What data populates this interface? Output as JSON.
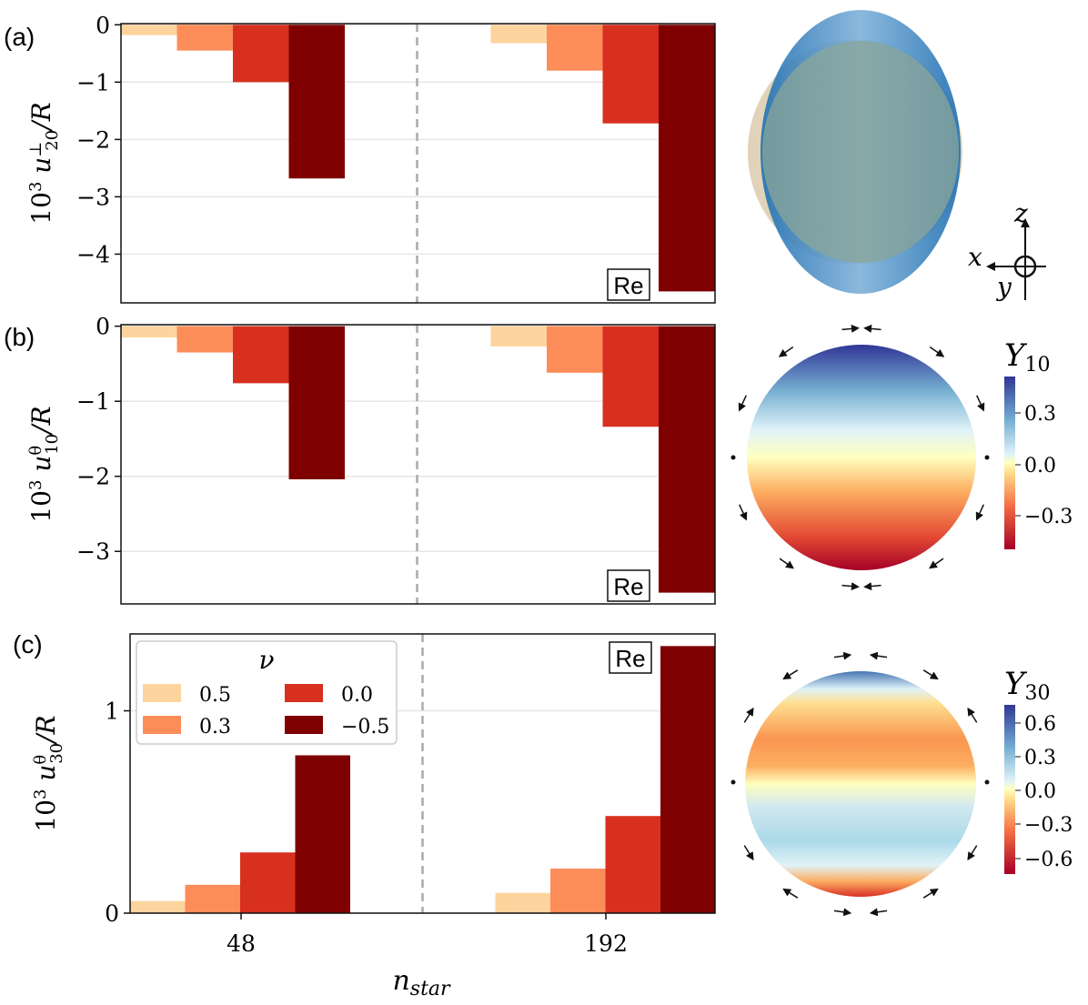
{
  "chart_data": [
    {
      "type": "bar",
      "panel_label": "(a)",
      "ylabel": "10³ u⊥20/R",
      "categories": [
        "48",
        "192"
      ],
      "series": [
        {
          "name": "0.5",
          "values": [
            -0.18,
            -0.32
          ]
        },
        {
          "name": "0.3",
          "values": [
            -0.45,
            -0.8
          ]
        },
        {
          "name": "0.0",
          "values": [
            -1.0,
            -1.72
          ]
        },
        {
          "name": "−0.5",
          "values": [
            -2.68,
            -4.65
          ]
        }
      ],
      "ylim": [
        -4.85,
        0.02
      ],
      "yticks": [
        0,
        -1,
        -2,
        -3,
        -4
      ],
      "ytick_labels": [
        "0",
        "−1",
        "−2",
        "−3",
        "−4"
      ],
      "tag": "Re",
      "tag_position": "bottom-right",
      "grid": "horizontal"
    },
    {
      "type": "bar",
      "panel_label": "(b)",
      "ylabel": "10³ uθ10/R",
      "categories": [
        "48",
        "192"
      ],
      "series": [
        {
          "name": "0.5",
          "values": [
            -0.15,
            -0.27
          ]
        },
        {
          "name": "0.3",
          "values": [
            -0.35,
            -0.62
          ]
        },
        {
          "name": "0.0",
          "values": [
            -0.76,
            -1.34
          ]
        },
        {
          "name": "−0.5",
          "values": [
            -2.04,
            -3.55
          ]
        }
      ],
      "ylim": [
        -3.7,
        0.02
      ],
      "yticks": [
        0,
        -1,
        -2,
        -3
      ],
      "ytick_labels": [
        "0",
        "−1",
        "−2",
        "−3"
      ],
      "tag": "Re",
      "tag_position": "bottom-right",
      "grid": "horizontal"
    },
    {
      "type": "bar",
      "panel_label": "(c)",
      "ylabel": "10³ uθ30/R",
      "xlabel": "nstar",
      "categories": [
        "48",
        "192"
      ],
      "series": [
        {
          "name": "0.5",
          "values": [
            0.06,
            0.1
          ]
        },
        {
          "name": "0.3",
          "values": [
            0.14,
            0.22
          ]
        },
        {
          "name": "0.0",
          "values": [
            0.3,
            0.48
          ]
        },
        {
          "name": "−0.5",
          "values": [
            0.78,
            1.32
          ]
        }
      ],
      "ylim": [
        0,
        1.38
      ],
      "yticks": [
        0,
        1
      ],
      "ytick_labels": [
        "0",
        "1"
      ],
      "tag": "Re",
      "tag_position": "top-right",
      "grid": "horizontal",
      "legend": {
        "title": "ν",
        "placement": "top-left",
        "ncol": 2
      }
    }
  ],
  "series_colors": [
    "#fdd49e",
    "#fc8d59",
    "#d7301f",
    "#7f0000"
  ],
  "side": {
    "axes": {
      "z": "z",
      "x": "x",
      "y": "y"
    },
    "colorbar_b": {
      "title": "Y10",
      "ticks": [
        "0.3",
        "0.0",
        "−0.3"
      ]
    },
    "colorbar_c": {
      "title": "Y30",
      "ticks": [
        "0.6",
        "0.3",
        "0.0",
        "−0.3",
        "−0.6"
      ]
    }
  }
}
